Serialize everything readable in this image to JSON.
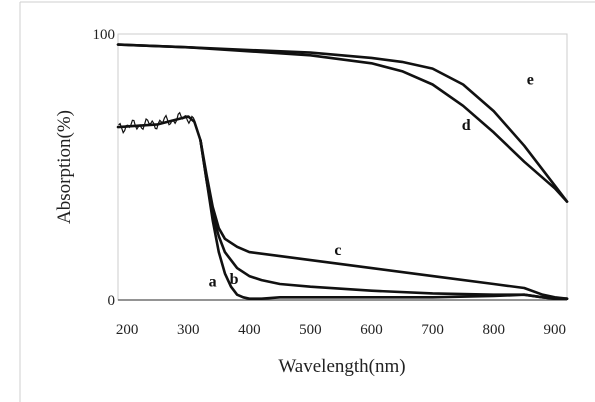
{
  "chart_data": {
    "type": "line",
    "xlabel": "Wavelength(nm)",
    "ylabel": "Absorption(%)",
    "xlim": [
      185,
      920
    ],
    "ylim": [
      0,
      100
    ],
    "x_ticks": [
      200,
      300,
      400,
      500,
      600,
      700,
      800,
      900
    ],
    "y_ticks": [
      0,
      100
    ],
    "grid": false,
    "series": [
      {
        "name": "a",
        "x": [
          185,
          250,
          300,
          310,
          320,
          330,
          340,
          350,
          360,
          370,
          380,
          390,
          400,
          420,
          450,
          500,
          600,
          700,
          800,
          850,
          880,
          900,
          920
        ],
        "y": [
          65,
          66,
          69,
          67,
          60,
          45,
          30,
          18,
          10,
          5,
          2,
          1,
          0.5,
          0.5,
          1,
          1,
          1,
          1,
          1.5,
          2,
          1,
          0.5,
          0.5
        ]
      },
      {
        "name": "b",
        "x": [
          320,
          330,
          340,
          350,
          360,
          380,
          400,
          420,
          450,
          500,
          600,
          700,
          800,
          850,
          880,
          900,
          920
        ],
        "y": [
          60,
          45,
          32,
          24,
          18,
          12,
          9,
          7.5,
          6,
          5,
          3.5,
          2.5,
          2,
          2,
          1,
          0.5,
          0.5
        ]
      },
      {
        "name": "c",
        "x": [
          320,
          330,
          340,
          350,
          360,
          380,
          400,
          450,
          500,
          600,
          700,
          800,
          850,
          880,
          900,
          920
        ],
        "y": [
          60,
          47,
          35,
          27,
          23,
          20,
          18,
          16.5,
          15,
          12,
          9,
          6,
          4.5,
          2,
          1,
          0.5
        ]
      },
      {
        "name": "d",
        "x": [
          185,
          300,
          400,
          500,
          600,
          650,
          700,
          750,
          800,
          850,
          900,
          920
        ],
        "y": [
          96,
          95,
          93.5,
          92,
          89,
          86,
          81,
          73,
          63,
          52,
          42,
          37
        ]
      },
      {
        "name": "e",
        "x": [
          185,
          300,
          400,
          500,
          600,
          650,
          700,
          750,
          800,
          850,
          900,
          920
        ],
        "y": [
          96,
          95,
          94,
          93,
          91,
          89.5,
          87,
          81,
          71,
          58,
          43,
          37
        ]
      }
    ],
    "curve_labels": [
      {
        "text": "a",
        "x": 340,
        "y": 5
      },
      {
        "text": "b",
        "x": 375,
        "y": 6
      },
      {
        "text": "c",
        "x": 545,
        "y": 17
      },
      {
        "text": "d",
        "x": 755,
        "y": 64
      },
      {
        "text": "e",
        "x": 860,
        "y": 81
      }
    ]
  }
}
